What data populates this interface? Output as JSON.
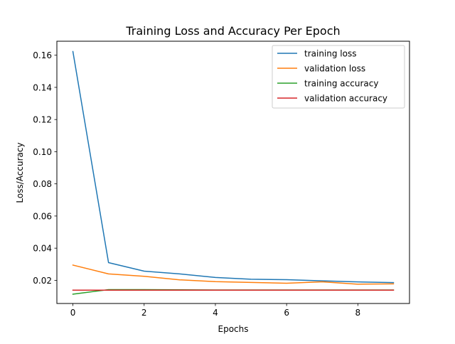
{
  "chart_data": {
    "type": "line",
    "title": "Training Loss and Accuracy Per Epoch",
    "xlabel": "Epochs",
    "ylabel": "Loss/Accuracy",
    "xlim": [
      -0.45,
      9.45
    ],
    "ylim": [
      0.0056,
      0.1687
    ],
    "xticks": [
      0,
      2,
      4,
      6,
      8
    ],
    "yticks": [
      0.02,
      0.04,
      0.06,
      0.08,
      0.1,
      0.12,
      0.14,
      0.16
    ],
    "ytick_labels": [
      "0.02",
      "0.04",
      "0.06",
      "0.08",
      "0.10",
      "0.12",
      "0.14",
      "0.16"
    ],
    "grid": false,
    "legend_position": "top-right",
    "x": [
      0,
      1,
      2,
      3,
      4,
      5,
      6,
      7,
      8,
      9
    ],
    "series": [
      {
        "name": "training loss",
        "color": "#1f77b4",
        "values": [
          0.1623,
          0.031,
          0.0257,
          0.024,
          0.0218,
          0.0207,
          0.0204,
          0.0197,
          0.019,
          0.0186
        ]
      },
      {
        "name": "validation loss",
        "color": "#ff7f0e",
        "values": [
          0.0295,
          0.024,
          0.0225,
          0.0203,
          0.0192,
          0.0187,
          0.0182,
          0.0191,
          0.0176,
          0.0178
        ]
      },
      {
        "name": "training accuracy",
        "color": "#2ca02c",
        "values": [
          0.0114,
          0.0142,
          0.0142,
          0.0141,
          0.014,
          0.014,
          0.014,
          0.014,
          0.014,
          0.014
        ]
      },
      {
        "name": "validation accuracy",
        "color": "#d62728",
        "values": [
          0.0139,
          0.0139,
          0.0139,
          0.0139,
          0.0139,
          0.0139,
          0.0139,
          0.0139,
          0.0139,
          0.0139
        ]
      }
    ]
  }
}
